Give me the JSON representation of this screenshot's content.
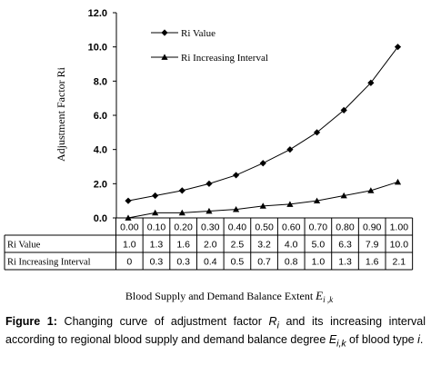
{
  "chart_data": {
    "type": "line",
    "x": [
      "0.00",
      "0.10",
      "0.20",
      "0.30",
      "0.40",
      "0.50",
      "0.60",
      "0.70",
      "0.80",
      "0.90",
      "1.00"
    ],
    "series": [
      {
        "name": "Ri Value",
        "marker": "diamond",
        "values": [
          1.0,
          1.3,
          1.6,
          2.0,
          2.5,
          3.2,
          4.0,
          5.0,
          6.3,
          7.9,
          10.0
        ]
      },
      {
        "name": "Ri Increasing Interval",
        "marker": "triangle",
        "values": [
          0,
          0.3,
          0.3,
          0.4,
          0.5,
          0.7,
          0.8,
          1.0,
          1.3,
          1.6,
          2.1
        ]
      }
    ],
    "table_rows": [
      {
        "label": "Ri Value",
        "values": [
          "1.0",
          "1.3",
          "1.6",
          "2.0",
          "2.5",
          "3.2",
          "4.0",
          "5.0",
          "6.3",
          "7.9",
          "10.0"
        ]
      },
      {
        "label": "Ri Increasing Interval",
        "values": [
          "0",
          "0.3",
          "0.3",
          "0.4",
          "0.5",
          "0.7",
          "0.8",
          "1.0",
          "1.3",
          "1.6",
          "2.1"
        ]
      }
    ],
    "y_ticks": [
      "0.0",
      "2.0",
      "4.0",
      "6.0",
      "8.0",
      "10.0",
      "12.0"
    ],
    "ylim": [
      0,
      12
    ],
    "ylabel": "Adjustment Factor Ri",
    "xlabel_main": "Blood Supply and Demand Balance Extent ",
    "xlabel_symbol": "E",
    "xlabel_sub": "i ,k",
    "legend_position": "top-center",
    "grid": false,
    "line_color": "#000000"
  },
  "caption": {
    "label": "Figure 1:",
    "part1": " Changing curve of adjustment factor ",
    "var_r": "R",
    "var_r_sub": "i",
    "part2": " and its increasing interval according to regional blood supply and demand balance degree ",
    "var_e": "E",
    "var_e_sub": "i,k",
    "part3": " of blood type ",
    "var_i": "i",
    "part4": "."
  }
}
